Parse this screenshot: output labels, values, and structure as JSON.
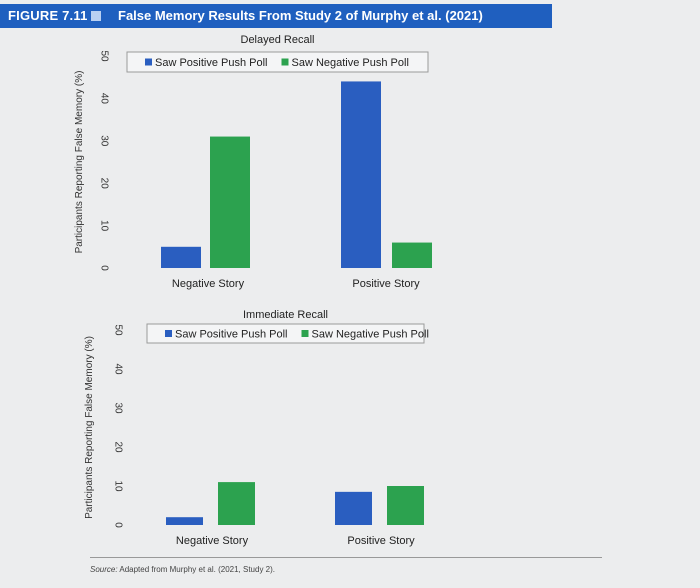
{
  "figure": {
    "label": "FIGURE 7.11",
    "title": "False Memory Results From Study 2 of Murphy et al. (2021)",
    "source_prefix": "Source:",
    "source_text": " Adapted from Murphy et al. (2021, Study 2)."
  },
  "colors": {
    "positive": "#2a5ec0",
    "negative": "#2ca24f",
    "header": "#1f5fbf"
  },
  "chart_data": [
    {
      "type": "bar",
      "title": "Delayed Recall",
      "ylabel": "Participants Reporting False Memory (%)",
      "xlabel": "",
      "ylim": [
        0,
        50
      ],
      "yticks": [
        0,
        10,
        20,
        30,
        40,
        50
      ],
      "categories": [
        "Negative Story",
        "Positive Story"
      ],
      "series": [
        {
          "name": "Saw Positive Push Poll",
          "values": [
            5,
            44
          ]
        },
        {
          "name": "Saw Negative Push Poll",
          "values": [
            31,
            6
          ]
        }
      ],
      "legend": "top"
    },
    {
      "type": "bar",
      "title": "Immediate Recall",
      "ylabel": "Participants Reporting False Memory (%)",
      "xlabel": "",
      "ylim": [
        0,
        50
      ],
      "yticks": [
        0,
        10,
        20,
        30,
        40,
        50
      ],
      "categories": [
        "Negative Story",
        "Positive Story"
      ],
      "series": [
        {
          "name": "Saw Positive Push Poll",
          "values": [
            2,
            8.5
          ]
        },
        {
          "name": "Saw Negative Push Poll",
          "values": [
            11,
            10
          ]
        }
      ],
      "legend": "top"
    }
  ]
}
